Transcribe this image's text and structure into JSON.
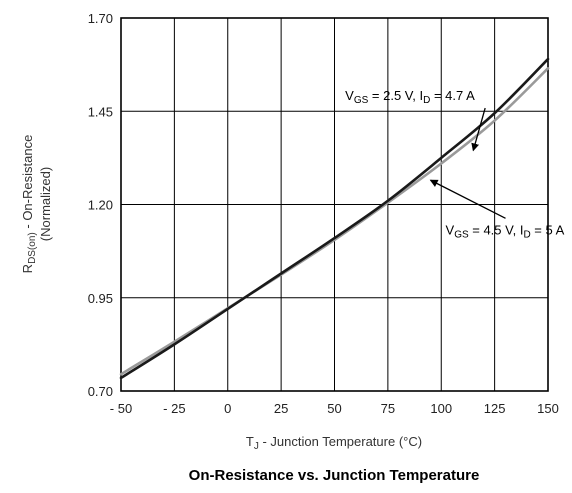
{
  "chart_data": {
    "type": "line",
    "title": "On-Resistance vs. Junction Temperature",
    "xlabel": {
      "main": "T",
      "sub": "J",
      "rest": " - Junction Temperature (°C)"
    },
    "ylabel": {
      "main": "R",
      "sub": "DS(on)",
      "rest": " - On-Resistance",
      "line2": "(Normalized)"
    },
    "xlim": [
      -50,
      150
    ],
    "ylim": [
      0.7,
      1.7
    ],
    "x_ticks": [
      "- 50",
      "- 25",
      "0",
      "25",
      "50",
      "75",
      "100",
      "125",
      "150"
    ],
    "x_tick_values": [
      -50,
      -25,
      0,
      25,
      50,
      75,
      100,
      125,
      150
    ],
    "y_ticks": [
      "0.70",
      "0.95",
      "1.20",
      "1.45",
      "1.70"
    ],
    "y_tick_values": [
      0.7,
      0.95,
      1.2,
      1.45,
      1.7
    ],
    "grid": true,
    "series": [
      {
        "label": {
          "a": "V",
          "a_sub": "GS",
          "b": " = 2.5 V, I",
          "b_sub": "D",
          "c": " = 4.7 A"
        },
        "color": "#1a1a1a",
        "x": [
          -50,
          -25,
          0,
          25,
          50,
          75,
          100,
          125,
          150
        ],
        "y": [
          0.735,
          0.825,
          0.92,
          1.015,
          1.11,
          1.21,
          1.325,
          1.445,
          1.59
        ]
      },
      {
        "label": {
          "a": "V",
          "a_sub": "GS",
          "b": " = 4.5 V, I",
          "b_sub": "D",
          "c": " = 5 A"
        },
        "color": "#9a9a9a",
        "x": [
          -50,
          -25,
          0,
          25,
          50,
          75,
          100,
          125,
          150
        ],
        "y": [
          0.745,
          0.832,
          0.922,
          1.012,
          1.105,
          1.205,
          1.31,
          1.425,
          1.565
        ]
      }
    ],
    "annotations": [
      {
        "series": 0,
        "text_at": [
          55,
          1.48
        ],
        "arrow_to": [
          115,
          1.345
        ]
      },
      {
        "series": 1,
        "text_at": [
          102,
          1.12
        ],
        "arrow_to": [
          95,
          1.265
        ]
      }
    ]
  }
}
